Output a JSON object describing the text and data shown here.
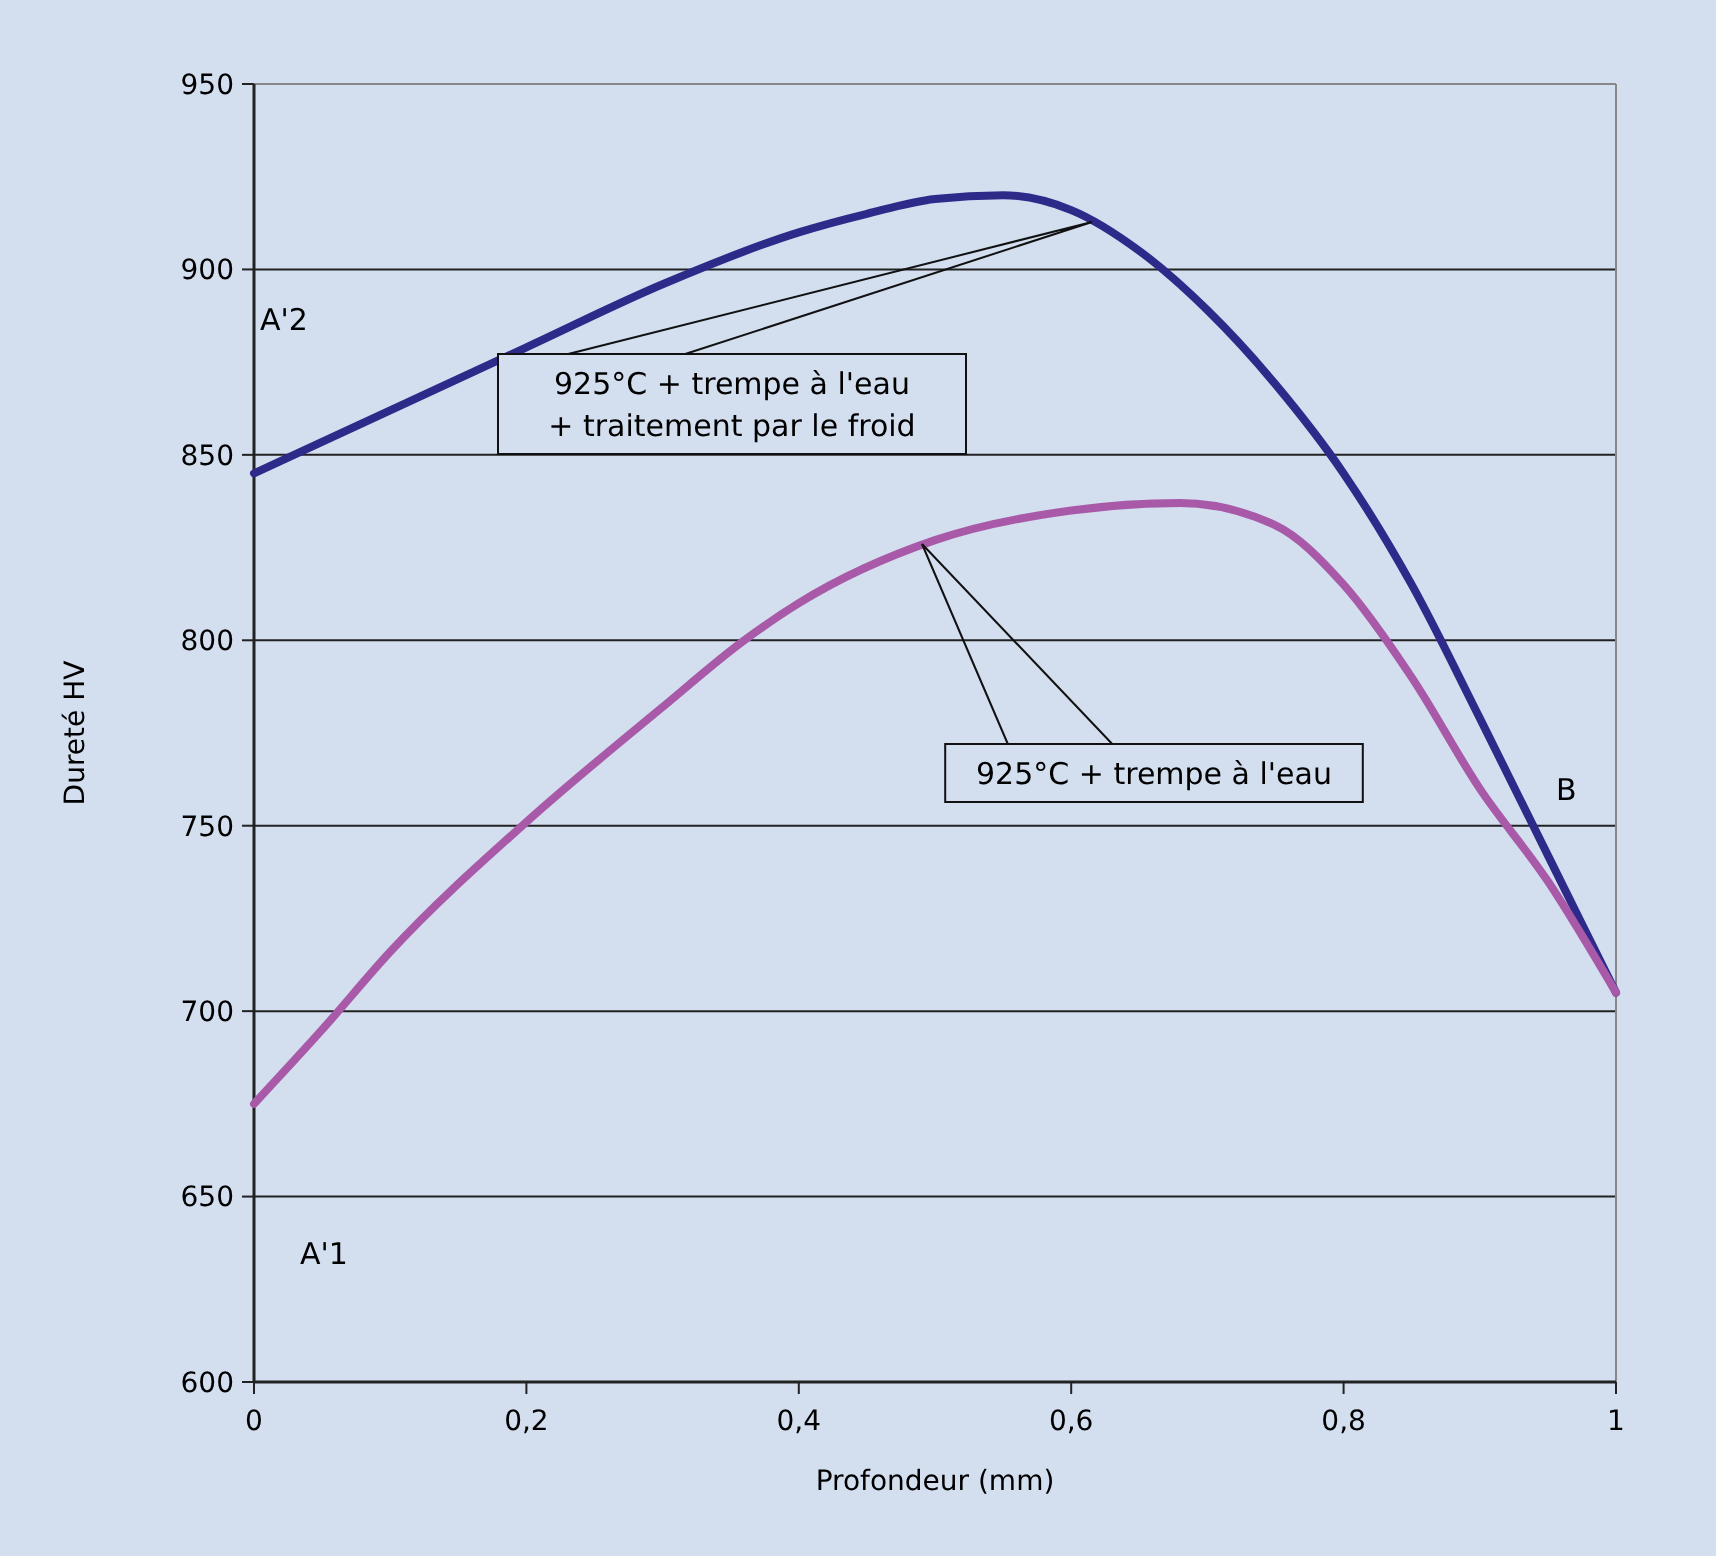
{
  "chart_data": {
    "type": "line",
    "xlabel": "Profondeur (mm)",
    "ylabel": "Dureté HV",
    "xlim": [
      0,
      1
    ],
    "xticks": [
      0,
      {
        "value": 0.2,
        "label": "0,2"
      },
      {
        "value": 0.4,
        "label": "0,4"
      },
      {
        "value": 0.6,
        "label": "0,6"
      },
      {
        "value": 0.8,
        "label": "0,8"
      },
      1
    ],
    "ylim": [
      600,
      950
    ],
    "yticks": [
      600,
      650,
      700,
      750,
      800,
      850,
      900,
      950
    ],
    "grid": "y",
    "marker": "none",
    "line_style": "solid",
    "series": [
      {
        "color": "#2e2a8a",
        "x": [
          0,
          0.1,
          0.2,
          0.3,
          0.4,
          0.45,
          0.5,
          0.55,
          0.6,
          0.65,
          0.7,
          0.75,
          0.8,
          0.85,
          0.9,
          0.95,
          1
        ],
        "values": [
          845,
          862,
          879,
          896,
          910,
          915,
          919,
          920,
          916,
          905,
          889,
          869,
          845,
          815,
          779,
          742,
          705
        ]
      },
      {
        "color": "#a85aa8",
        "x": [
          0,
          0.05,
          0.1,
          0.2,
          0.3,
          0.36,
          0.4,
          0.5,
          0.6,
          0.68,
          0.75,
          0.8,
          0.85,
          0.9,
          0.95,
          1
        ],
        "values": [
          675,
          695,
          716,
          751,
          782,
          800,
          810,
          827,
          835,
          837,
          831,
          815,
          790,
          760,
          735,
          705
        ]
      }
    ],
    "annotations": [
      "A'2",
      "A'1",
      "B",
      "925°C + trempe à l'eau\n+ traitement par le froid",
      "925°C + trempe à l'eau"
    ]
  }
}
